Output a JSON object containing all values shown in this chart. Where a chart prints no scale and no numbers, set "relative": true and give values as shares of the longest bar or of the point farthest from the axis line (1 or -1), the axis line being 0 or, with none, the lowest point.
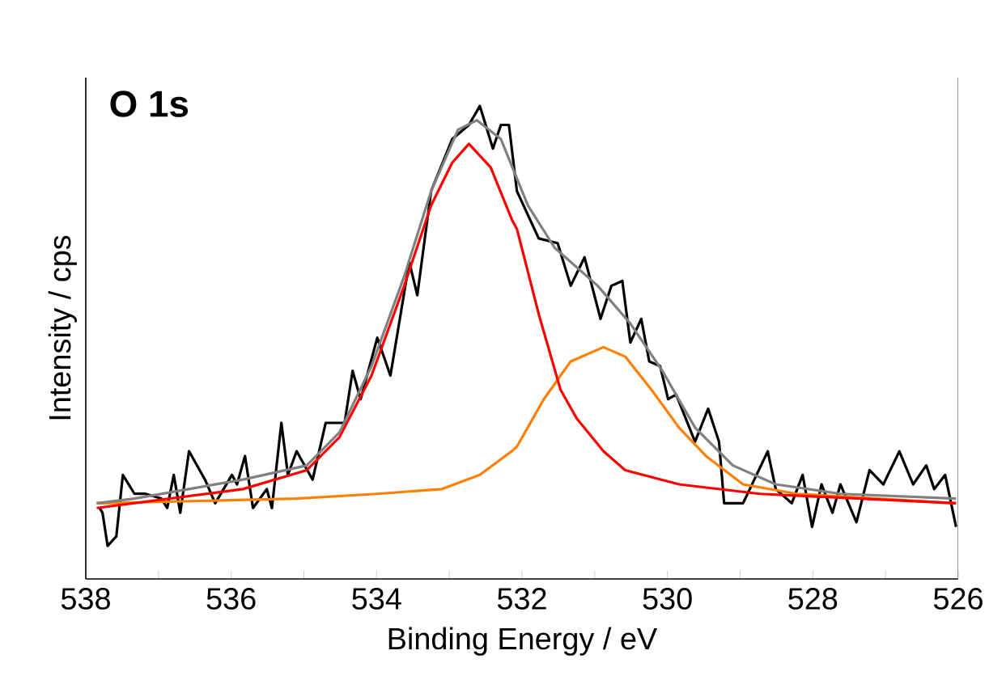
{
  "chart_data": {
    "type": "line",
    "title": "O 1s",
    "xlabel": "Binding Energy / eV",
    "ylabel": "Intensity / cps",
    "relative": true,
    "xlim": [
      538,
      526
    ],
    "xticks": [
      538,
      {
        "value": 537,
        "label": null
      },
      536,
      {
        "value": 535,
        "label": null
      },
      534,
      {
        "value": 533,
        "label": null
      },
      532,
      {
        "value": 531,
        "label": null
      },
      530,
      {
        "value": 529,
        "label": null
      },
      528,
      {
        "value": 527,
        "label": null
      },
      526
    ],
    "grid": false,
    "series": [
      {
        "color": "#000000",
        "x": [
          537.81,
          537.77,
          537.7,
          537.58,
          537.49,
          537.33,
          537.18,
          536.96,
          536.88,
          536.79,
          536.7,
          536.58,
          536.36,
          536.22,
          535.99,
          535.92,
          535.81,
          535.7,
          535.51,
          535.44,
          535.31,
          535.22,
          535.1,
          534.88,
          534.7,
          534.44,
          534.33,
          534.22,
          533.99,
          533.81,
          533.55,
          533.44,
          533.25,
          532.96,
          532.73,
          532.58,
          532.4,
          532.29,
          532.18,
          532.07,
          531.77,
          531.51,
          531.33,
          531.14,
          530.92,
          530.77,
          530.62,
          530.51,
          530.36,
          530.25,
          530.1,
          529.99,
          529.88,
          529.62,
          529.44,
          529.29,
          529.22,
          528.96,
          528.62,
          528.51,
          528.29,
          528.14,
          528.01,
          527.88,
          527.73,
          527.62,
          527.4,
          527.22,
          527.03,
          526.81,
          526.62,
          526.44,
          526.33,
          526.18,
          526.03
        ],
        "values": [
          0.15,
          0.14,
          0.07,
          0.09,
          0.22,
          0.18,
          0.18,
          0.17,
          0.15,
          0.22,
          0.14,
          0.27,
          0.21,
          0.16,
          0.22,
          0.2,
          0.26,
          0.15,
          0.19,
          0.15,
          0.33,
          0.22,
          0.27,
          0.21,
          0.33,
          0.33,
          0.44,
          0.38,
          0.51,
          0.43,
          0.67,
          0.6,
          0.82,
          0.93,
          0.96,
          1.0,
          0.91,
          0.96,
          0.96,
          0.82,
          0.72,
          0.71,
          0.62,
          0.68,
          0.55,
          0.62,
          0.63,
          0.5,
          0.55,
          0.46,
          0.45,
          0.38,
          0.39,
          0.29,
          0.36,
          0.29,
          0.16,
          0.16,
          0.27,
          0.19,
          0.16,
          0.22,
          0.11,
          0.2,
          0.14,
          0.2,
          0.12,
          0.23,
          0.2,
          0.27,
          0.2,
          0.24,
          0.19,
          0.22,
          0.11
        ]
      },
      {
        "color": "#ff8000",
        "x": [
          537.85,
          537.77,
          535.1,
          533.99,
          533.1,
          532.58,
          532.14,
          532.07,
          531.7,
          531.33,
          530.88,
          530.58,
          530.22,
          529.84,
          529.47,
          528.96,
          528.22,
          526.03
        ],
        "values": [
          0.16,
          0.16,
          0.17,
          0.18,
          0.19,
          0.22,
          0.27,
          0.28,
          0.38,
          0.46,
          0.49,
          0.47,
          0.4,
          0.32,
          0.26,
          0.2,
          0.18,
          0.16
        ]
      },
      {
        "color": "#ff0000",
        "x": [
          537.85,
          535.84,
          534.96,
          534.51,
          534.07,
          533.62,
          533.25,
          532.96,
          532.73,
          532.43,
          532.14,
          532.07,
          531.77,
          531.47,
          531.25,
          530.88,
          530.58,
          529.84,
          528.73,
          526.03
        ],
        "values": [
          0.15,
          0.19,
          0.23,
          0.3,
          0.43,
          0.62,
          0.79,
          0.88,
          0.92,
          0.87,
          0.76,
          0.74,
          0.56,
          0.4,
          0.34,
          0.27,
          0.23,
          0.2,
          0.18,
          0.16
        ]
      },
      {
        "color": "#808080",
        "x": [
          537.85,
          537.33,
          535.84,
          534.96,
          534.51,
          534.07,
          533.62,
          533.25,
          532.88,
          532.62,
          532.29,
          531.92,
          531.55,
          530.96,
          530.51,
          530.07,
          529.62,
          529.1,
          528.51,
          527.62,
          526.03
        ],
        "values": [
          0.16,
          0.17,
          0.21,
          0.24,
          0.31,
          0.45,
          0.64,
          0.82,
          0.95,
          0.97,
          0.93,
          0.79,
          0.7,
          0.62,
          0.54,
          0.44,
          0.32,
          0.24,
          0.2,
          0.18,
          0.17
        ]
      }
    ]
  }
}
